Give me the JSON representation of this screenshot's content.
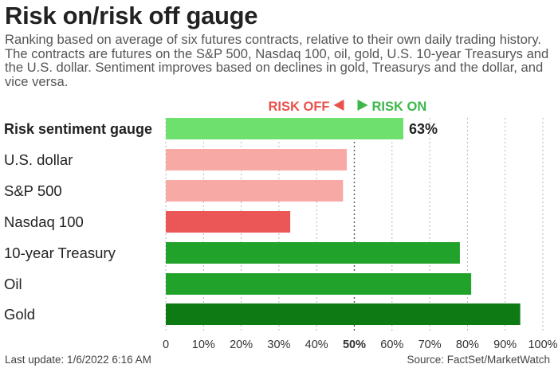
{
  "title": "Risk on/risk off gauge",
  "subtitle": "Ranking based on average of six futures contracts, relative to their own daily trading history. The contracts are futures on the S&P 500, Nasdaq 100, oil, gold, U.S. 10-year Treasurys and the U.S. dollar. Sentiment improves based on declines in gold, Treasurys and the dollar, and vice versa.",
  "legend": {
    "risk_off": "RISK OFF",
    "risk_on": "RISK ON",
    "risk_off_color": "#e8524a",
    "risk_on_color": "#3cb84a"
  },
  "footer": {
    "last_update": "Last update: 1/6/2022 6:16 AM",
    "source": "Source: FactSet/MarketWatch"
  },
  "chart_data": {
    "type": "bar",
    "orientation": "horizontal",
    "categories": [
      "Risk sentiment gauge",
      "U.S. dollar",
      "S&P 500",
      "Nasdaq 100",
      "10-year Treasury",
      "Oil",
      "Gold"
    ],
    "values": [
      63,
      48,
      47,
      33,
      78,
      81,
      94
    ],
    "colors": [
      "#6ee06e",
      "#f7a9a6",
      "#f7a9a6",
      "#eb5757",
      "#21a22b",
      "#21a22b",
      "#0d7a14"
    ],
    "value_labels": [
      "63%",
      "",
      "",
      "",
      "",
      "",
      ""
    ],
    "xlim": [
      0,
      100
    ],
    "xticks": [
      "0",
      "10%",
      "20%",
      "30%",
      "40%",
      "50%",
      "60%",
      "70%",
      "80%",
      "90%",
      "100%"
    ],
    "grid": "vertical dashed",
    "midline": 50
  }
}
